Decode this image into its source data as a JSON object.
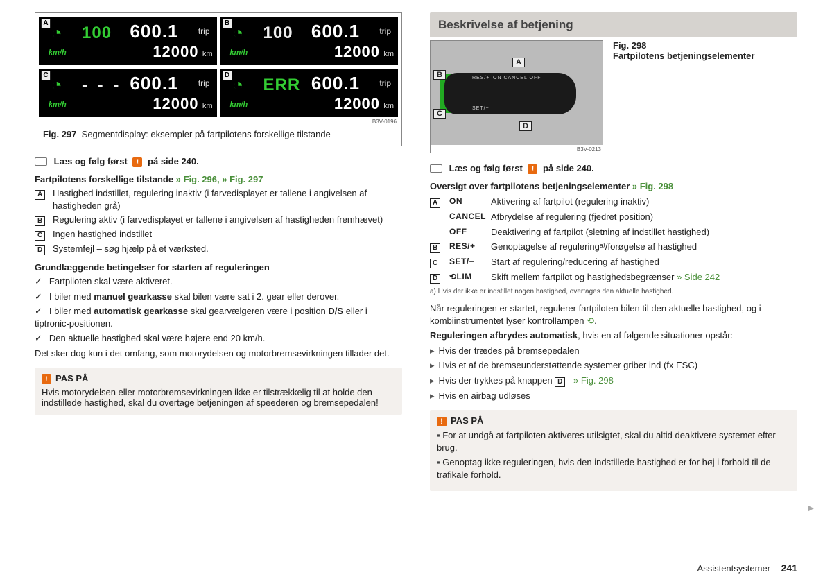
{
  "leftFig": {
    "code": "B3V-0196",
    "caption_prefix": "Fig. 297",
    "caption": "Segmentdisplay: eksempler på fartpilotens forskellige tilstande",
    "panels": {
      "A": {
        "set": "100",
        "setClass": "green",
        "main": "600.1",
        "trip": "trip",
        "odo": "12000",
        "unit": "km",
        "kmh": "km/h"
      },
      "B": {
        "set": "100",
        "setClass": "white",
        "main": "600.1",
        "trip": "trip",
        "odo": "12000",
        "unit": "km",
        "kmh": "km/h"
      },
      "C": {
        "set": "- - -",
        "setClass": "dashes",
        "main": "600.1",
        "trip": "trip",
        "odo": "12000",
        "unit": "km",
        "kmh": "km/h"
      },
      "D": {
        "set": "ERR",
        "setClass": "green",
        "main": "600.1",
        "trip": "trip",
        "odo": "12000",
        "unit": "km",
        "kmh": "km/h"
      }
    }
  },
  "readFirst": {
    "pre": "Læs og følg først",
    "post": "på side 240."
  },
  "states": {
    "title": "Fartpilotens forskellige tilstande",
    "links": [
      "» Fig. 296,",
      "» Fig. 297"
    ],
    "items": [
      {
        "l": "A",
        "t": "Hastighed indstillet, regulering inaktiv (i farvedisplayet er tallene i angivelsen af hastigheden grå)"
      },
      {
        "l": "B",
        "t": "Regulering aktiv (i farvedisplayet er tallene i angivelsen af hastigheden fremhævet)"
      },
      {
        "l": "C",
        "t": "Ingen hastighed indstillet"
      },
      {
        "l": "D",
        "t": "Systemfejl – søg hjælp på et værksted."
      }
    ]
  },
  "conditions": {
    "title": "Grundlæggende betingelser for starten af reguleringen",
    "items": [
      "Fartpiloten skal være aktiveret.",
      "I biler med <b>manuel gearkasse</b> skal bilen være sat i 2. gear eller derover.",
      "I biler med <b>automatisk gearkasse</b> skal gearvælgeren være i position <b>D/S</b> eller i tiptronic-positionen.",
      "Den aktuelle hastighed skal være højere end 20 km/h."
    ],
    "tail": "Det sker dog kun i det omfang, som motorydelsen og motorbremsevirkningen tillader det."
  },
  "warnLeft": {
    "title": "PAS PÅ",
    "text": "Hvis motorydelsen eller motorbremsevirkningen ikke er tilstrækkelig til at holde den indstillede hastighed, skal du overtage betjeningen af speederen og bremsepedalen!"
  },
  "section2": {
    "title": "Beskrivelse af betjening"
  },
  "fig298": {
    "label": "Fig. 298",
    "title": "Fartpilotens betjeningselementer",
    "code": "B3V-0213",
    "marks": [
      "A",
      "B",
      "C",
      "D"
    ],
    "stalkText": [
      "RES/+",
      "ON  CANCEL  OFF",
      "SET/−"
    ]
  },
  "overview": {
    "title": "Oversigt over fartpilotens betjeningselementer",
    "link": "» Fig. 298",
    "rows": [
      {
        "box": "A",
        "b": "ON",
        "t": "Aktivering af fartpilot (regulering inaktiv)"
      },
      {
        "box": "",
        "b": "CANCEL",
        "t": "Afbrydelse af regulering (fjedret position)"
      },
      {
        "box": "",
        "b": "OFF",
        "t": "Deaktivering af fartpilot (sletning af indstillet hastighed)"
      },
      {
        "box": "B",
        "b": "RES/+",
        "t": "Genoptagelse af reguleringᵃ⁾/forøgelse af hastighed"
      },
      {
        "box": "C",
        "b": "SET/−",
        "t": "Start af regulering/reducering af hastighed"
      },
      {
        "box": "D",
        "b": "⟲LIM",
        "t": "Skift mellem fartpilot og hastighedsbegrænser <span class='grnlink'>» Side 242</span>"
      }
    ],
    "footnote": "a)   Hvis der ikke er indstillet nogen hastighed, overtages den aktuelle hastighed."
  },
  "body2": {
    "p1": "Når reguleringen er startet, regulerer fartpiloten bilen til den aktuelle hastighed, og i kombiinstrumentet lyser kontrollampen <span style='color:#4a8f3a'>⟲</span>.",
    "p2": "<b>Reguleringen afbrydes automatisk</b>, hvis en af følgende situationer opstår:",
    "bl": [
      "Hvis der trædes på bremsepedalen",
      "Hvis et af de bremseunderstøttende systemer griber ind (fx ESC)",
      "Hvis der trykkes på knappen <span class='boxlabel'>D</span> <span class='grnlink'>» Fig. 298</span>",
      "Hvis en airbag udløses"
    ]
  },
  "warnRight": {
    "title": "PAS PÅ",
    "items": [
      "For at undgå at fartpiloten aktiveres utilsigtet, skal du altid deaktivere systemet efter brug.",
      "Genoptag ikke reguleringen, hvis den indstillede hastighed er for høj i forhold til de trafikale forhold."
    ]
  },
  "footer": {
    "section": "Assistentsystemer",
    "page": "241"
  }
}
